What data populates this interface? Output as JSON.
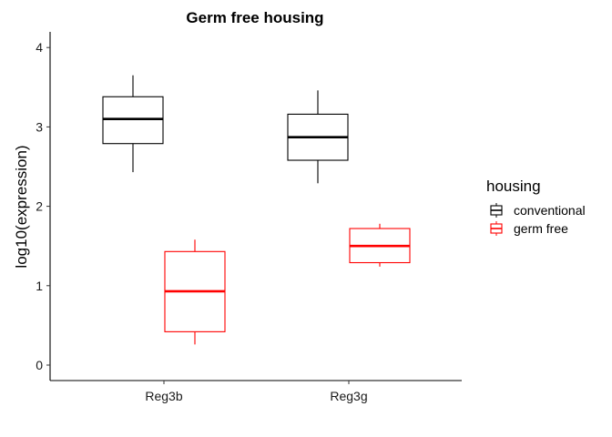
{
  "chart_data": {
    "type": "box",
    "title": "Germ free housing",
    "xlabel": "",
    "ylabel": "log10(expression)",
    "ylim": [
      -0.2,
      4.2
    ],
    "yticks": [
      0,
      1,
      2,
      3,
      4
    ],
    "categories": [
      "Reg3b",
      "Reg3g"
    ],
    "legend": {
      "title": "housing",
      "position": "right"
    },
    "series": [
      {
        "name": "conventional",
        "color": "#000000",
        "boxes": [
          {
            "category": "Reg3b",
            "min": 2.43,
            "q1": 2.79,
            "median": 3.1,
            "q3": 3.38,
            "max": 3.65
          },
          {
            "category": "Reg3g",
            "min": 2.29,
            "q1": 2.58,
            "median": 2.87,
            "q3": 3.16,
            "max": 3.46
          }
        ]
      },
      {
        "name": "germ free",
        "color": "#ff0000",
        "boxes": [
          {
            "category": "Reg3b",
            "min": 0.26,
            "q1": 0.42,
            "median": 0.93,
            "q3": 1.43,
            "max": 1.58
          },
          {
            "category": "Reg3g",
            "min": 1.24,
            "q1": 1.29,
            "median": 1.5,
            "q3": 1.72,
            "max": 1.78
          }
        ]
      }
    ]
  }
}
